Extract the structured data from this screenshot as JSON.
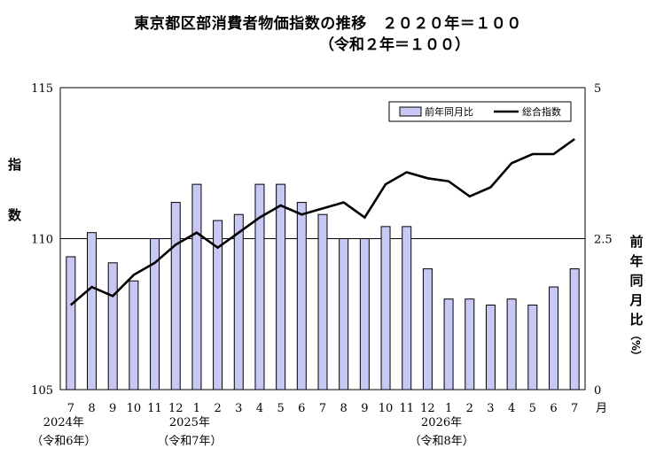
{
  "title": "東京都区部消費者物価指数の推移　２０２０年＝１００",
  "subtitle": "（令和２年＝１００）",
  "ylabel_left": [
    "指",
    "数"
  ],
  "ylabel_right": [
    "前",
    "年",
    "同",
    "月",
    "比",
    "（%）"
  ],
  "x_unit": "月",
  "year_labels": [
    {
      "year": "2024年",
      "era": "（令和6年）",
      "index": 0
    },
    {
      "year": "2025年",
      "era": "（令和7年）",
      "index": 6
    },
    {
      "year": "2026年",
      "era": "（令和8年）",
      "index": 18
    }
  ],
  "chart_data": {
    "type": "bar",
    "categories": [
      "7",
      "8",
      "9",
      "10",
      "11",
      "12",
      "1",
      "2",
      "3",
      "4",
      "5",
      "6",
      "7",
      "8",
      "9",
      "10",
      "11",
      "12",
      "1",
      "2",
      "3",
      "4",
      "5",
      "6",
      "7"
    ],
    "series": [
      {
        "name": "前年同月比",
        "type": "bar",
        "axis": "right",
        "values": [
          2.2,
          2.6,
          2.1,
          1.8,
          2.5,
          3.1,
          3.4,
          2.8,
          2.9,
          3.4,
          3.4,
          3.1,
          2.9,
          2.5,
          2.5,
          2.7,
          2.7,
          2.0,
          1.5,
          1.5,
          1.4,
          1.5,
          1.4,
          1.7,
          2.0
        ]
      },
      {
        "name": "総合指数",
        "type": "line",
        "axis": "left",
        "values": [
          107.8,
          108.4,
          108.1,
          108.8,
          109.2,
          109.8,
          110.2,
          109.7,
          110.2,
          110.7,
          111.1,
          110.8,
          111.0,
          111.2,
          110.7,
          111.8,
          112.2,
          112.0,
          111.9,
          111.4,
          111.7,
          112.5,
          112.8,
          112.8,
          113.3
        ]
      }
    ],
    "y_left": {
      "ylim": [
        105,
        115
      ],
      "ticks": [
        "105",
        "110",
        "115"
      ]
    },
    "y_right": {
      "ylim": [
        0,
        5
      ],
      "ticks": [
        "0",
        "2.5",
        "5"
      ]
    },
    "legend_placement": "top-right",
    "colors": {
      "bar_fill": "#c8c8f5",
      "bar_stroke": "#000000",
      "line": "#000000"
    }
  }
}
